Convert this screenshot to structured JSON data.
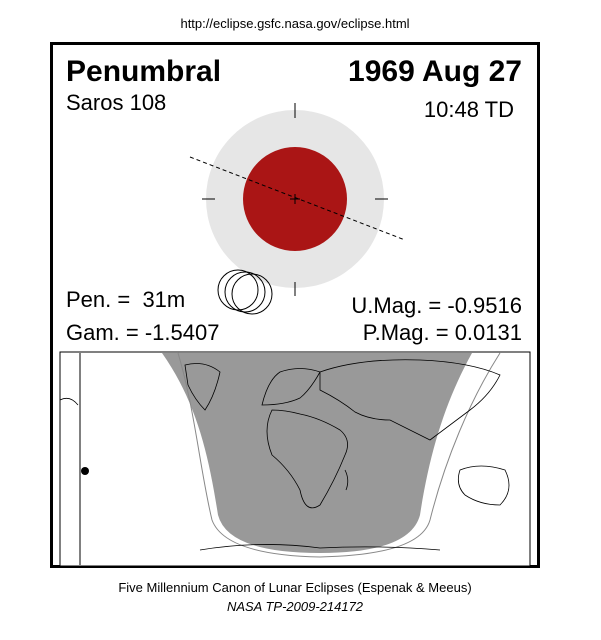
{
  "header": {
    "url": "http://eclipse.gsfc.nasa.gov/eclipse.html"
  },
  "eclipse": {
    "type": "Penumbral",
    "date": "1969 Aug 27",
    "saros": "Saros 108",
    "time": "10:48 TD",
    "pen_duration": "Pen. =  31m",
    "gamma": "Gam. = -1.5407",
    "umbral_mag": "U.Mag. = -0.9516",
    "penumbral_mag": "P.Mag. = 0.0131"
  },
  "footer": {
    "canon": "Five Millennium Canon of Lunar Eclipses (Espenak & Meeus)",
    "reference": "NASA TP-2009-214172"
  }
}
